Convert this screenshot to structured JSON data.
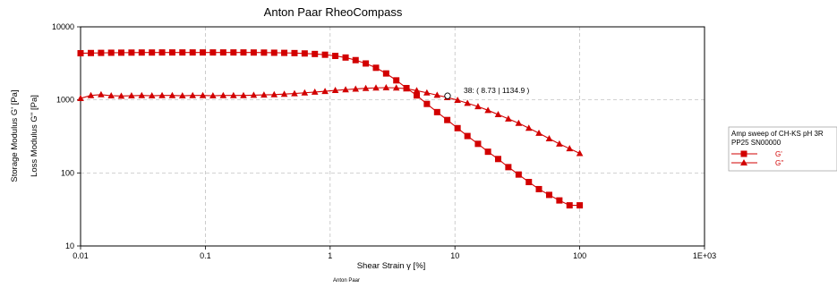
{
  "chart_data": {
    "type": "scatter",
    "title": "Anton Paar RheoCompass",
    "xlabel": "Shear Strain γ [%]",
    "ylabel_lines": [
      "Storage Modulus G' [Pa]",
      "Loss Modulus G'' [Pa]"
    ],
    "x_scale": "log",
    "y_scale": "log",
    "xlim": [
      0.01,
      1000
    ],
    "ylim": [
      10,
      10000
    ],
    "x_ticks": [
      {
        "value": 0.01,
        "label": "0.01"
      },
      {
        "value": 0.1,
        "label": "0.1"
      },
      {
        "value": 1,
        "label": "1"
      },
      {
        "value": 10,
        "label": "10"
      },
      {
        "value": 100,
        "label": "100"
      },
      {
        "value": 1000,
        "label": "1E+03"
      }
    ],
    "y_ticks": [
      {
        "value": 10,
        "label": "10"
      },
      {
        "value": 100,
        "label": "100"
      },
      {
        "value": 1000,
        "label": "1000"
      },
      {
        "value": 10000,
        "label": "10000"
      }
    ],
    "grid": true,
    "legend": {
      "placement": "right",
      "header_lines": [
        "Amp sweep of CH-KS pH 3R",
        "PP25 SN00000"
      ],
      "entries": [
        {
          "label": "G'",
          "marker": "square"
        },
        {
          "label": "G''",
          "marker": "triangle"
        }
      ]
    },
    "annotation": {
      "label": "38:  ( 8.73 | 1134.9 )",
      "x": 8.73,
      "y": 1134.9
    },
    "footer": "Anton Paar",
    "color": "#d20000",
    "x": [
      0.01,
      0.0121,
      0.0146,
      0.0176,
      0.0212,
      0.0256,
      0.0309,
      0.0373,
      0.045,
      0.0543,
      0.0655,
      0.0791,
      0.0954,
      0.115,
      0.139,
      0.168,
      0.202,
      0.244,
      0.295,
      0.356,
      0.429,
      0.518,
      0.625,
      0.754,
      0.91,
      1.1,
      1.33,
      1.6,
      1.93,
      2.33,
      2.81,
      3.39,
      4.09,
      4.94,
      5.96,
      7.2,
      8.68,
      10.5,
      12.6,
      15.3,
      18.4,
      22.2,
      26.8,
      32.4,
      39.1,
      47.1,
      56.9,
      68.7,
      82.9,
      100
    ],
    "series": [
      {
        "name": "G'",
        "marker": "square",
        "values": [
          4350,
          4380,
          4400,
          4420,
          4430,
          4440,
          4450,
          4450,
          4460,
          4460,
          4460,
          4460,
          4460,
          4460,
          4460,
          4460,
          4460,
          4450,
          4440,
          4420,
          4400,
          4370,
          4320,
          4250,
          4150,
          4000,
          3800,
          3500,
          3150,
          2750,
          2300,
          1850,
          1450,
          1150,
          880,
          680,
          530,
          410,
          320,
          250,
          195,
          155,
          120,
          95,
          75,
          60,
          50,
          42,
          36,
          36
        ]
      },
      {
        "name": "G''",
        "marker": "triangle",
        "values": [
          1050,
          1150,
          1180,
          1140,
          1130,
          1140,
          1150,
          1140,
          1150,
          1150,
          1140,
          1150,
          1150,
          1140,
          1150,
          1150,
          1150,
          1160,
          1170,
          1180,
          1200,
          1220,
          1250,
          1280,
          1310,
          1350,
          1380,
          1410,
          1440,
          1460,
          1470,
          1460,
          1420,
          1340,
          1250,
          1160,
          1080,
          990,
          900,
          810,
          720,
          630,
          550,
          480,
          410,
          350,
          295,
          250,
          215,
          185
        ]
      }
    ]
  }
}
